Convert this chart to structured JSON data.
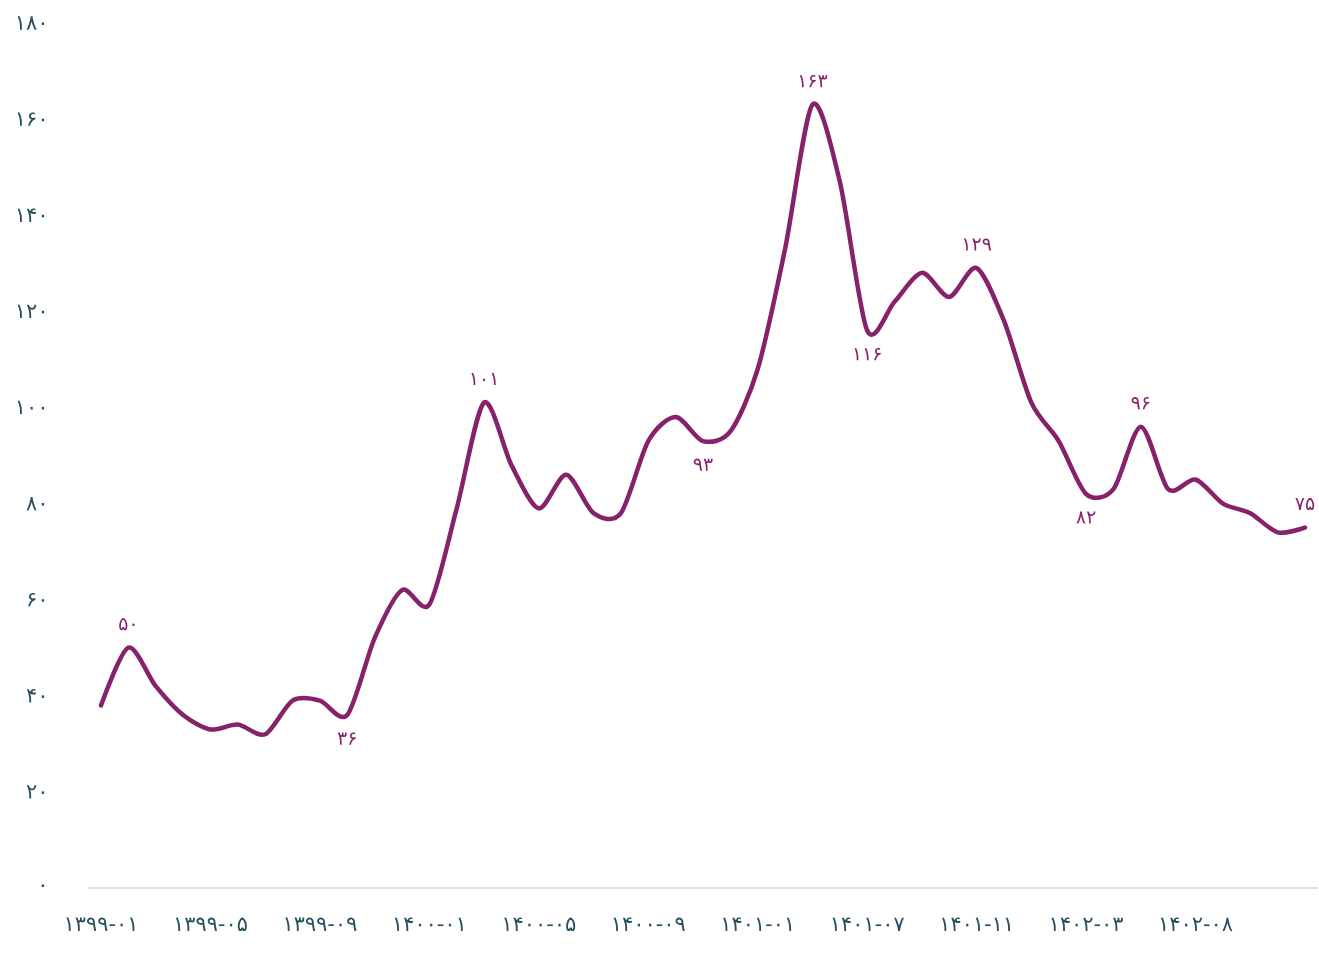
{
  "chart_data": {
    "type": "line",
    "color": "#86226b",
    "categories": [
      "۱۳۹۹-۰۱",
      null,
      null,
      null,
      "۱۳۹۹-۰۵",
      null,
      null,
      null,
      "۱۳۹۹-۰۹",
      null,
      null,
      null,
      "۱۴۰۰-۰۱",
      null,
      null,
      null,
      "۱۴۰۰-۰۵",
      null,
      null,
      null,
      "۱۴۰۰-۰۹",
      null,
      null,
      null,
      "۱۴۰۱-۰۱",
      null,
      null,
      null,
      "۱۴۰۱-۰۷",
      null,
      null,
      null,
      "۱۴۰۱-۱۱",
      null,
      null,
      null,
      "۱۴۰۲-۰۳",
      null,
      null,
      null,
      "۱۴۰۲-۰۸",
      null,
      null,
      null,
      null
    ],
    "values": [
      38,
      50,
      42,
      36,
      33,
      34,
      32,
      39,
      39,
      36,
      52,
      62,
      59,
      79,
      101,
      88,
      79,
      86,
      78,
      78,
      93,
      98,
      93,
      95,
      108,
      133,
      163,
      147,
      116,
      122,
      128,
      123,
      129,
      118,
      101,
      93,
      82,
      83,
      96,
      83,
      85,
      80,
      78,
      74,
      75
    ],
    "value_labels": [
      null,
      "۵۰",
      null,
      null,
      null,
      null,
      null,
      null,
      null,
      "۳۶",
      null,
      null,
      null,
      null,
      "۱۰۱",
      null,
      null,
      null,
      null,
      null,
      null,
      null,
      "۹۳",
      null,
      null,
      null,
      "۱۶۳",
      null,
      "۱۱۶",
      null,
      null,
      null,
      "۱۲۹",
      null,
      null,
      null,
      "۸۲",
      null,
      "۹۶",
      null,
      null,
      null,
      null,
      null,
      "۷۵"
    ],
    "ylim": [
      0,
      180
    ],
    "yticks": [
      {
        "value": 0,
        "label": "۰"
      },
      {
        "value": 20,
        "label": "۲۰"
      },
      {
        "value": 40,
        "label": "۴۰"
      },
      {
        "value": 60,
        "label": "۶۰"
      },
      {
        "value": 80,
        "label": "۸۰"
      },
      {
        "value": 100,
        "label": "۱۰۰"
      },
      {
        "value": 120,
        "label": "۱۲۰"
      },
      {
        "value": 140,
        "label": "۱۴۰"
      },
      {
        "value": 160,
        "label": "۱۶۰"
      },
      {
        "value": 180,
        "label": "۱۸۰"
      }
    ],
    "grid": false
  }
}
